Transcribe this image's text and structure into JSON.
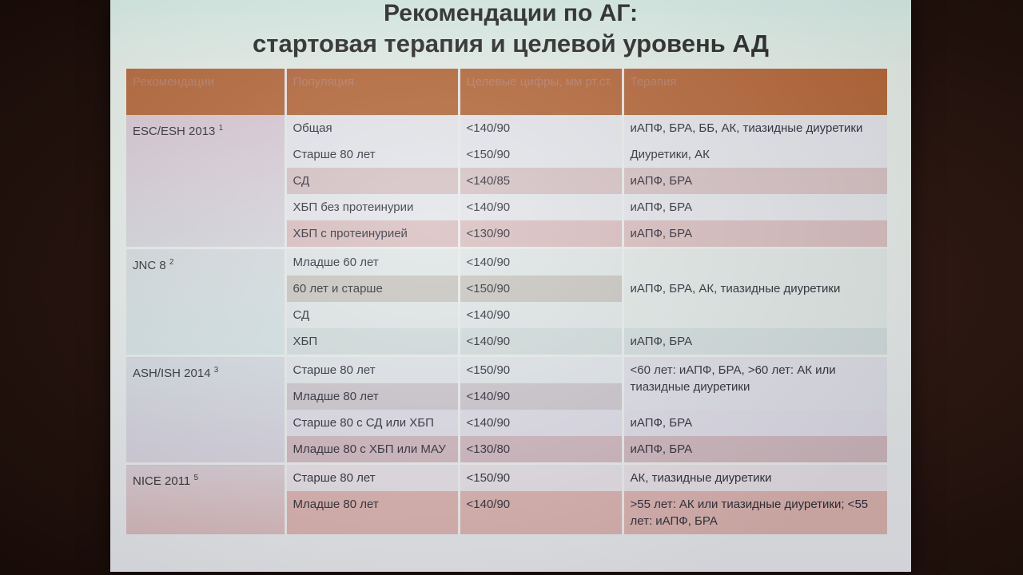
{
  "slide": {
    "title_line1": "Рекомендации по АГ:",
    "title_line2": "стартовая терапия и целевой уровень АД"
  },
  "table": {
    "headers": [
      "Рекомендации",
      "Популяция",
      "Целевые цифры, мм рт.ст.",
      "Терапия"
    ],
    "groups": [
      {
        "org": "ESC/ESH 2013",
        "ref": "1",
        "rows": [
          {
            "population": "Общая",
            "target": "<140/90",
            "therapy": "иАПФ, БРА, ББ, АК, тиазидные диуретики"
          },
          {
            "population": "Старше 80 лет",
            "target": "<150/90",
            "therapy": "Диуретики, АК"
          },
          {
            "population": "СД",
            "target": "<140/85",
            "therapy": "иАПФ, БРА"
          },
          {
            "population": "ХБП без протеинурии",
            "target": "<140/90",
            "therapy": "иАПФ, БРА"
          },
          {
            "population": "ХБП с протеинурией",
            "target": "<130/90",
            "therapy": "иАПФ, БРА"
          }
        ]
      },
      {
        "org": "JNC 8",
        "ref": "2",
        "rows": [
          {
            "population": "Младше 60 лет",
            "target": "<140/90"
          },
          {
            "population": "60 лет и старше",
            "target": "<150/90"
          },
          {
            "population": "СД",
            "target": "<140/90"
          },
          {
            "population": "ХБП",
            "target": "<140/90",
            "therapy": "иАПФ, БРА"
          }
        ],
        "merged_therapy": "иАПФ, БРА, АК, тиазидные диуретики"
      },
      {
        "org": "ASH/ISH 2014",
        "ref": "3",
        "rows": [
          {
            "population": "Старше 80 лет",
            "target": "<150/90"
          },
          {
            "population": "Младше 80 лет",
            "target": "<140/90"
          },
          {
            "population": "Старше 80 с СД или ХБП",
            "target": "<140/90",
            "therapy": "иАПФ, БРА"
          },
          {
            "population": "Младше 80 с ХБП или МАУ",
            "target": "<130/80",
            "therapy": "иАПФ, БРА"
          }
        ],
        "merged_therapy": "<60 лет: иАПФ, БРА, >60 лет: АК или тиазидные диуретики"
      },
      {
        "org": "NICE 2011",
        "ref": "5",
        "rows": [
          {
            "population": "Старше 80 лет",
            "target": "<150/90",
            "therapy": "АК, тиазидные диуретики"
          },
          {
            "population": "Младше 80 лет",
            "target": "<140/90",
            "therapy": ">55 лет: АК или тиазидные диуретики; <55 лет: иАПФ, БРА"
          }
        ]
      }
    ]
  }
}
